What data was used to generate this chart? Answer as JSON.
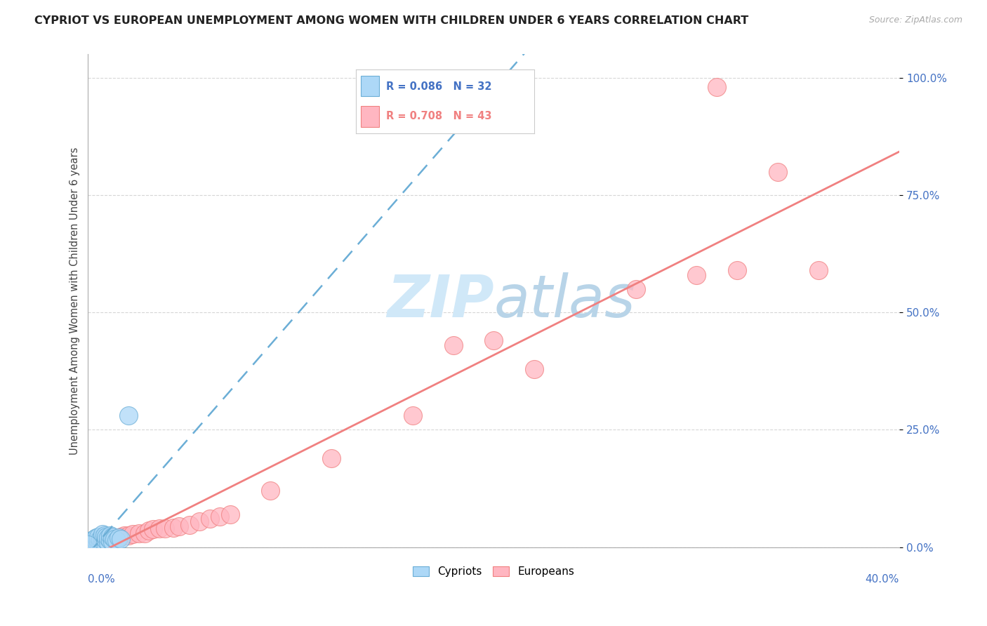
{
  "title": "CYPRIOT VS EUROPEAN UNEMPLOYMENT AMONG WOMEN WITH CHILDREN UNDER 6 YEARS CORRELATION CHART",
  "source": "Source: ZipAtlas.com",
  "ylabel": "Unemployment Among Women with Children Under 6 years",
  "legend_cypriots": "Cypriots",
  "legend_europeans": "Europeans",
  "R_cypriots": 0.086,
  "N_cypriots": 32,
  "R_europeans": 0.708,
  "N_europeans": 43,
  "cypriot_fill": "#add8f7",
  "cypriot_edge": "#6baed6",
  "european_fill": "#ffb6c1",
  "european_edge": "#f08080",
  "cypriot_line_color": "#6baed6",
  "european_line_color": "#f08080",
  "watermark_color": "#d0e8f8",
  "background_color": "#ffffff",
  "xlim": [
    0.0,
    0.4
  ],
  "ylim": [
    0.0,
    1.05
  ],
  "yticks": [
    0.0,
    0.25,
    0.5,
    0.75,
    1.0
  ],
  "ytick_labels": [
    "0.0%",
    "25.0%",
    "50.0%",
    "75.0%",
    "100.0%"
  ],
  "cypriot_x": [
    0.001,
    0.001,
    0.002,
    0.002,
    0.003,
    0.003,
    0.004,
    0.004,
    0.005,
    0.005,
    0.005,
    0.006,
    0.006,
    0.007,
    0.007,
    0.007,
    0.008,
    0.008,
    0.009,
    0.009,
    0.01,
    0.01,
    0.011,
    0.011,
    0.012,
    0.012,
    0.013,
    0.014,
    0.015,
    0.016,
    0.02,
    0.0
  ],
  "cypriot_y": [
    0.005,
    0.01,
    0.008,
    0.015,
    0.01,
    0.018,
    0.012,
    0.02,
    0.008,
    0.015,
    0.022,
    0.01,
    0.018,
    0.012,
    0.02,
    0.028,
    0.008,
    0.025,
    0.015,
    0.022,
    0.01,
    0.02,
    0.015,
    0.025,
    0.012,
    0.022,
    0.018,
    0.015,
    0.02,
    0.018,
    0.28,
    0.005
  ],
  "european_x": [
    0.001,
    0.002,
    0.003,
    0.004,
    0.005,
    0.006,
    0.007,
    0.008,
    0.009,
    0.01,
    0.011,
    0.012,
    0.013,
    0.015,
    0.016,
    0.018,
    0.02,
    0.022,
    0.025,
    0.028,
    0.03,
    0.032,
    0.035,
    0.038,
    0.042,
    0.045,
    0.05,
    0.055,
    0.06,
    0.065,
    0.07,
    0.09,
    0.12,
    0.16,
    0.18,
    0.2,
    0.22,
    0.27,
    0.3,
    0.31,
    0.32,
    0.34,
    0.36
  ],
  "european_y": [
    0.005,
    0.008,
    0.01,
    0.012,
    0.01,
    0.015,
    0.012,
    0.018,
    0.015,
    0.015,
    0.02,
    0.018,
    0.015,
    0.02,
    0.022,
    0.025,
    0.025,
    0.028,
    0.03,
    0.03,
    0.035,
    0.038,
    0.04,
    0.04,
    0.042,
    0.045,
    0.048,
    0.055,
    0.06,
    0.065,
    0.07,
    0.12,
    0.19,
    0.28,
    0.43,
    0.44,
    0.38,
    0.55,
    0.58,
    0.98,
    0.59,
    0.8,
    0.59
  ]
}
